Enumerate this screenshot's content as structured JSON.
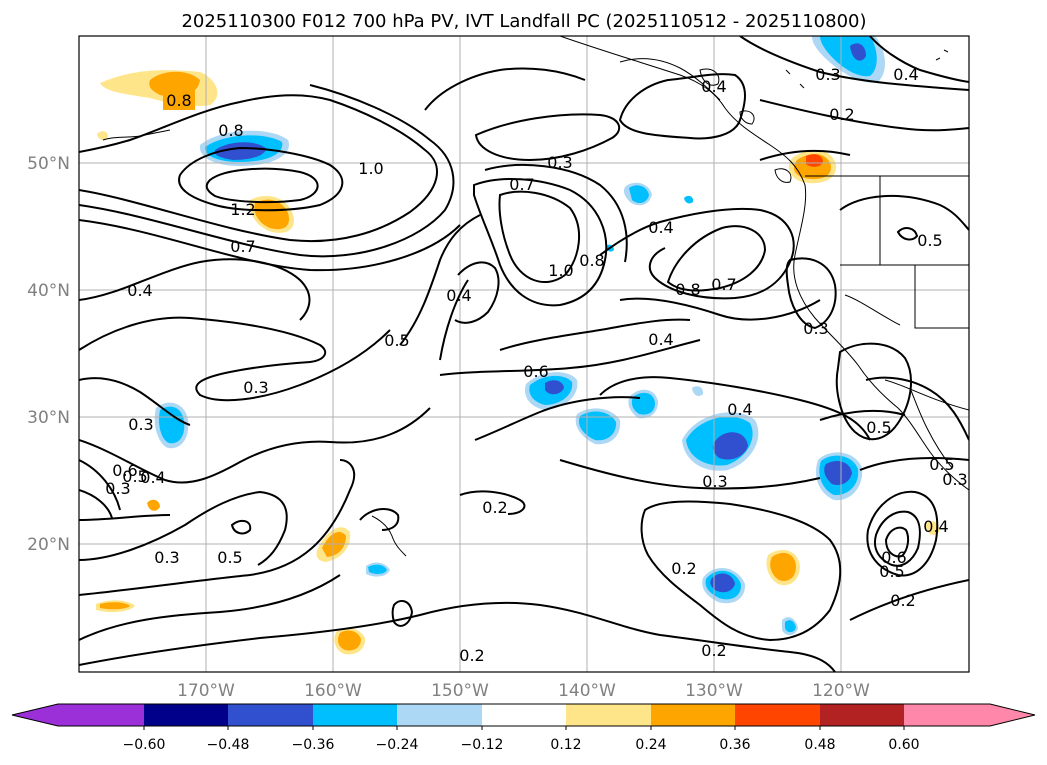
{
  "title": "2025110300 F012 700 hPa PV, IVT Landfall PC (2025110512 - 2025110800)",
  "latitude_labels": [
    "50°N",
    "40°N",
    "30°N",
    "20°N"
  ],
  "longitude_labels": [
    "170°W",
    "160°W",
    "150°W",
    "140°W",
    "130°W",
    "120°W"
  ],
  "colorbar": {
    "tick_labels": [
      "−0.60",
      "−0.48",
      "−0.36",
      "−0.24",
      "−0.12",
      "0.12",
      "0.24",
      "0.36",
      "0.48",
      "0.60"
    ],
    "colors": [
      "#9b30d8",
      "#00008b",
      "#3050d0",
      "#00bfff",
      "#add8f5",
      "#ffffff",
      "#ffe58a",
      "#ffa500",
      "#ff4500",
      "#b22222",
      "#ff88aa"
    ]
  },
  "contour_labels": [
    "0.8",
    "0.8",
    "1.0",
    "1.2",
    "0.7",
    "0.3",
    "0.7",
    "0.4",
    "0.3",
    "0.2",
    "0.4",
    "1.0",
    "0.8",
    "0.8",
    "0.7",
    "0.5",
    "0.4",
    "0.4",
    "0.5",
    "0.3",
    "0.6",
    "0.4",
    "0.3",
    "0.5",
    "0.4",
    "0.3",
    "0.4",
    "0.5",
    "0.6",
    "0.3",
    "0.3",
    "0.2",
    "0.5",
    "0.2",
    "0.2",
    "0.2",
    "0.4",
    "0.6",
    "0.5",
    "0.2",
    "0.3",
    "0.4",
    "0.5",
    "0.3"
  ],
  "chart_data": {
    "type": "map",
    "title": "2025110300 F012 700 hPa PV, IVT Landfall PC (2025110512 - 2025110800)",
    "projection": "PlateCarree",
    "lon_range": [
      -180,
      -110
    ],
    "lat_range": [
      10,
      60
    ],
    "colorbar_levels": [
      -0.6,
      -0.48,
      -0.36,
      -0.24,
      -0.12,
      0.12,
      0.24,
      0.36,
      0.48,
      0.6
    ],
    "grid": true
  }
}
